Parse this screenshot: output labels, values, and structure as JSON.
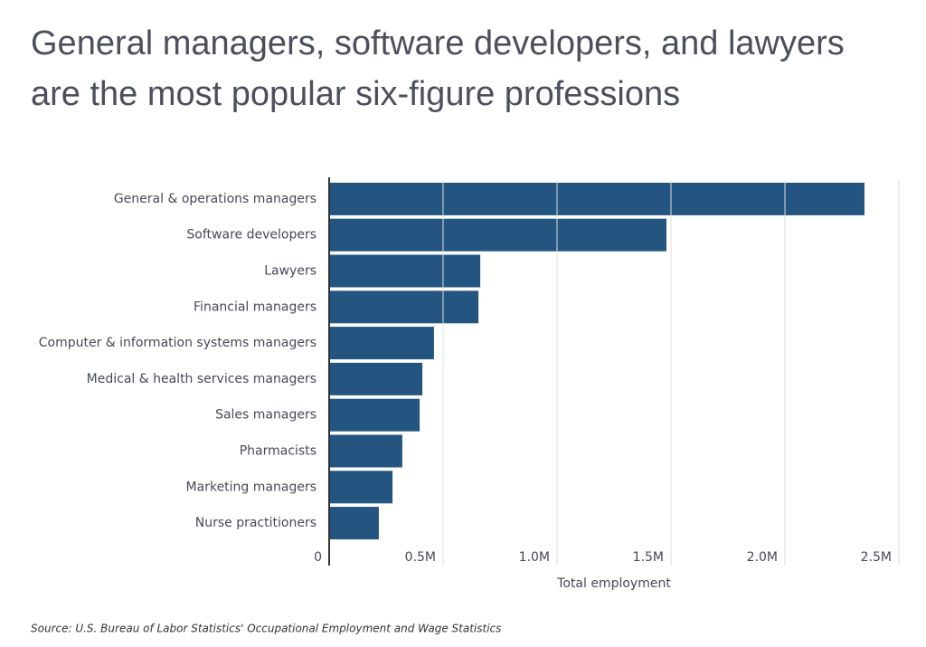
{
  "chart_data": {
    "type": "barh",
    "title": "General managers, software developers, and lawyers are the most popular six-figure professions",
    "categories": [
      "General & operations managers",
      "Software developers",
      "Lawyers",
      "Financial managers",
      "Computer & information systems managers",
      "Medical & health services managers",
      "Sales managers",
      "Pharmacists",
      "Marketing managers",
      "Nurse practitioners"
    ],
    "values": [
      2349000,
      1480000,
      663000,
      655000,
      460000,
      409000,
      397000,
      321000,
      278000,
      218000
    ],
    "color": "#245580",
    "xlim": [
      0,
      2500000
    ],
    "xticks": [
      0,
      {
        "value": 500000,
        "label": "0.5M"
      },
      {
        "value": 1000000,
        "label": "1.0M"
      },
      {
        "value": 1500000,
        "label": "1.5M"
      },
      {
        "value": 2000000,
        "label": "2.0M"
      },
      {
        "value": 2500000,
        "label": "2.5M"
      }
    ],
    "xlabel": "Total employment",
    "grid": true,
    "source": "Source:  U.S. Bureau of Labor Statistics' Occupational Employment and Wage Statistics"
  }
}
